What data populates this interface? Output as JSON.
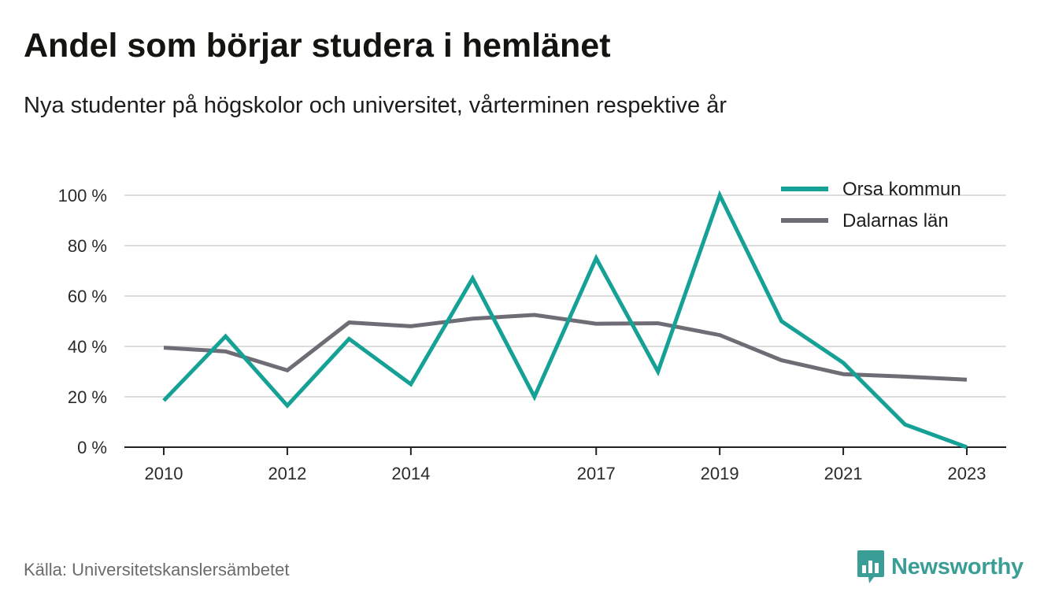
{
  "header": {
    "title": "Andel som börjar studera i hemlänet",
    "subtitle": "Nya studenter på högskolor och universitet, vårterminen respektive år"
  },
  "footer": {
    "source": "Källa: Universitetskanslersämbetet",
    "brand": "Newsworthy"
  },
  "colors": {
    "orsa": "#15a195",
    "dalarna": "#6e6d75",
    "grid": "#dddddd",
    "axis": "#222222",
    "brand": "#3a9e96"
  },
  "icons": {
    "brand_logo": "bar-chart-speech-bubble-icon"
  },
  "chart_data": {
    "type": "line",
    "x": [
      2010,
      2011,
      2012,
      2013,
      2014,
      2015,
      2016,
      2017,
      2018,
      2019,
      2020,
      2021,
      2022,
      2023
    ],
    "x_ticks": [
      2010,
      2012,
      2014,
      2017,
      2019,
      2021,
      2023
    ],
    "x_tick_labels": [
      "2010",
      "2012",
      "2014",
      "2017",
      "2019",
      "2021",
      "2023"
    ],
    "y_ticks": [
      0,
      20,
      40,
      60,
      80,
      100
    ],
    "y_tick_labels": [
      "0 %",
      "20 %",
      "40 %",
      "60 %",
      "80 %",
      "100 %"
    ],
    "ylim": [
      0,
      100
    ],
    "grid": true,
    "legend_position": "top-right",
    "series": [
      {
        "name": "Orsa kommun",
        "values": [
          18.5,
          44,
          16.5,
          43,
          25,
          67,
          20,
          75,
          30,
          100,
          50,
          33.5,
          9,
          0
        ]
      },
      {
        "name": "Dalarnas län",
        "values": [
          39.5,
          38,
          30.5,
          49.5,
          48,
          51,
          52.5,
          49,
          49.2,
          44.5,
          34.5,
          29,
          28,
          26.8
        ]
      }
    ]
  }
}
